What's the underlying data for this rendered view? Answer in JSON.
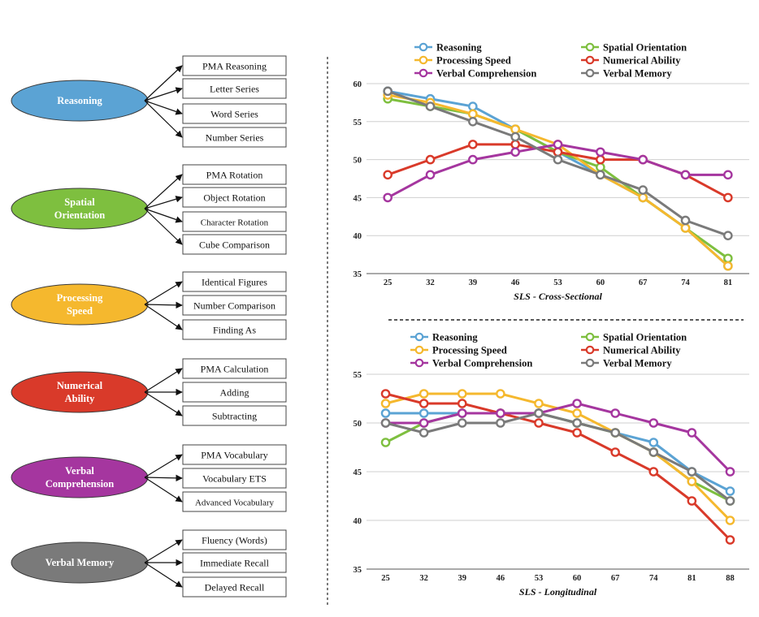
{
  "colors": {
    "reasoning": "#5ba3d4",
    "spatial": "#7ebf3f",
    "processing": "#f5b82e",
    "numerical": "#d93a2a",
    "verbal_comp": "#a5369f",
    "verbal_mem": "#7a7a7a"
  },
  "factors": [
    {
      "key": "reasoning",
      "label_lines": [
        "Reasoning"
      ],
      "tests": [
        "PMA Reasoning",
        "Letter Series",
        "Word Series",
        "Number Series"
      ]
    },
    {
      "key": "spatial",
      "label_lines": [
        "Spatial",
        "Orientation"
      ],
      "tests": [
        "PMA Rotation",
        "Object Rotation",
        "Character Rotation",
        "Cube Comparison"
      ]
    },
    {
      "key": "processing",
      "label_lines": [
        "Processing",
        "Speed"
      ],
      "tests": [
        "Identical Figures",
        "Number Comparison",
        "Finding As"
      ]
    },
    {
      "key": "numerical",
      "label_lines": [
        "Numerical",
        "Ability"
      ],
      "tests": [
        "PMA Calculation",
        "Adding",
        "Subtracting"
      ]
    },
    {
      "key": "verbal_comp",
      "label_lines": [
        "Verbal",
        "Comprehension"
      ],
      "tests": [
        "PMA Vocabulary",
        "Vocabulary ETS",
        "Advanced Vocabulary"
      ]
    },
    {
      "key": "verbal_mem",
      "label_lines": [
        "Verbal Memory"
      ],
      "tests": [
        "Fluency (Words)",
        "Immediate Recall",
        "Delayed Recall"
      ]
    }
  ],
  "chart_data": [
    {
      "type": "line",
      "xlabel": "SLS - Cross-Sectional",
      "x": [
        25,
        32,
        39,
        46,
        53,
        60,
        67,
        74,
        81
      ],
      "ylim": [
        35,
        60
      ],
      "yticks": [
        35,
        40,
        45,
        50,
        55,
        60
      ],
      "grid": true,
      "legend_order": [
        "Reasoning",
        "Spatial Orientation",
        "Processing Speed",
        "Numerical Ability",
        "Verbal Comprehension",
        "Verbal Memory"
      ],
      "series": [
        {
          "name": "Reasoning",
          "color_key": "reasoning",
          "values": [
            59,
            58,
            57,
            54,
            51,
            48,
            45,
            41,
            36
          ]
        },
        {
          "name": "Spatial Orientation",
          "color_key": "spatial",
          "values": [
            58,
            57,
            56,
            54,
            51,
            49,
            45,
            41,
            37
          ]
        },
        {
          "name": "Processing Speed",
          "color_key": "processing",
          "values": [
            58.5,
            57.5,
            56,
            54,
            52,
            48,
            45,
            41,
            36
          ]
        },
        {
          "name": "Numerical Ability",
          "color_key": "numerical",
          "values": [
            48,
            50,
            52,
            52,
            51,
            50,
            50,
            48,
            45
          ]
        },
        {
          "name": "Verbal Comprehension",
          "color_key": "verbal_comp",
          "values": [
            45,
            48,
            50,
            51,
            52,
            51,
            50,
            48,
            48
          ]
        },
        {
          "name": "Verbal Memory",
          "color_key": "verbal_mem",
          "values": [
            59,
            57,
            55,
            53,
            50,
            48,
            46,
            42,
            40
          ]
        }
      ]
    },
    {
      "type": "line",
      "xlabel": "SLS - Longitudinal",
      "x": [
        25,
        32,
        39,
        46,
        53,
        60,
        67,
        74,
        81,
        88
      ],
      "ylim": [
        35,
        55
      ],
      "yticks": [
        35,
        40,
        45,
        50,
        55
      ],
      "grid": true,
      "legend_order": [
        "Reasoning",
        "Spatial Orientation",
        "Processing Speed",
        "Numerical Ability",
        "Verbal Comprehension",
        "Verbal Memory"
      ],
      "series": [
        {
          "name": "Reasoning",
          "color_key": "reasoning",
          "values": [
            51,
            51,
            51,
            51,
            51,
            50,
            49,
            48,
            45,
            43
          ]
        },
        {
          "name": "Spatial Orientation",
          "color_key": "spatial",
          "values": [
            48,
            50,
            51,
            51,
            51,
            50,
            49,
            47,
            44,
            42
          ]
        },
        {
          "name": "Processing Speed",
          "color_key": "processing",
          "values": [
            52,
            53,
            53,
            53,
            52,
            51,
            49,
            47,
            44,
            40
          ]
        },
        {
          "name": "Numerical Ability",
          "color_key": "numerical",
          "values": [
            53,
            52,
            52,
            51,
            50,
            49,
            47,
            45,
            42,
            38
          ]
        },
        {
          "name": "Verbal Comprehension",
          "color_key": "verbal_comp",
          "values": [
            50,
            50,
            51,
            51,
            51,
            52,
            51,
            50,
            49,
            45
          ]
        },
        {
          "name": "Verbal Memory",
          "color_key": "verbal_mem",
          "values": [
            50,
            49,
            50,
            50,
            51,
            50,
            49,
            47,
            45,
            42
          ]
        }
      ]
    }
  ]
}
